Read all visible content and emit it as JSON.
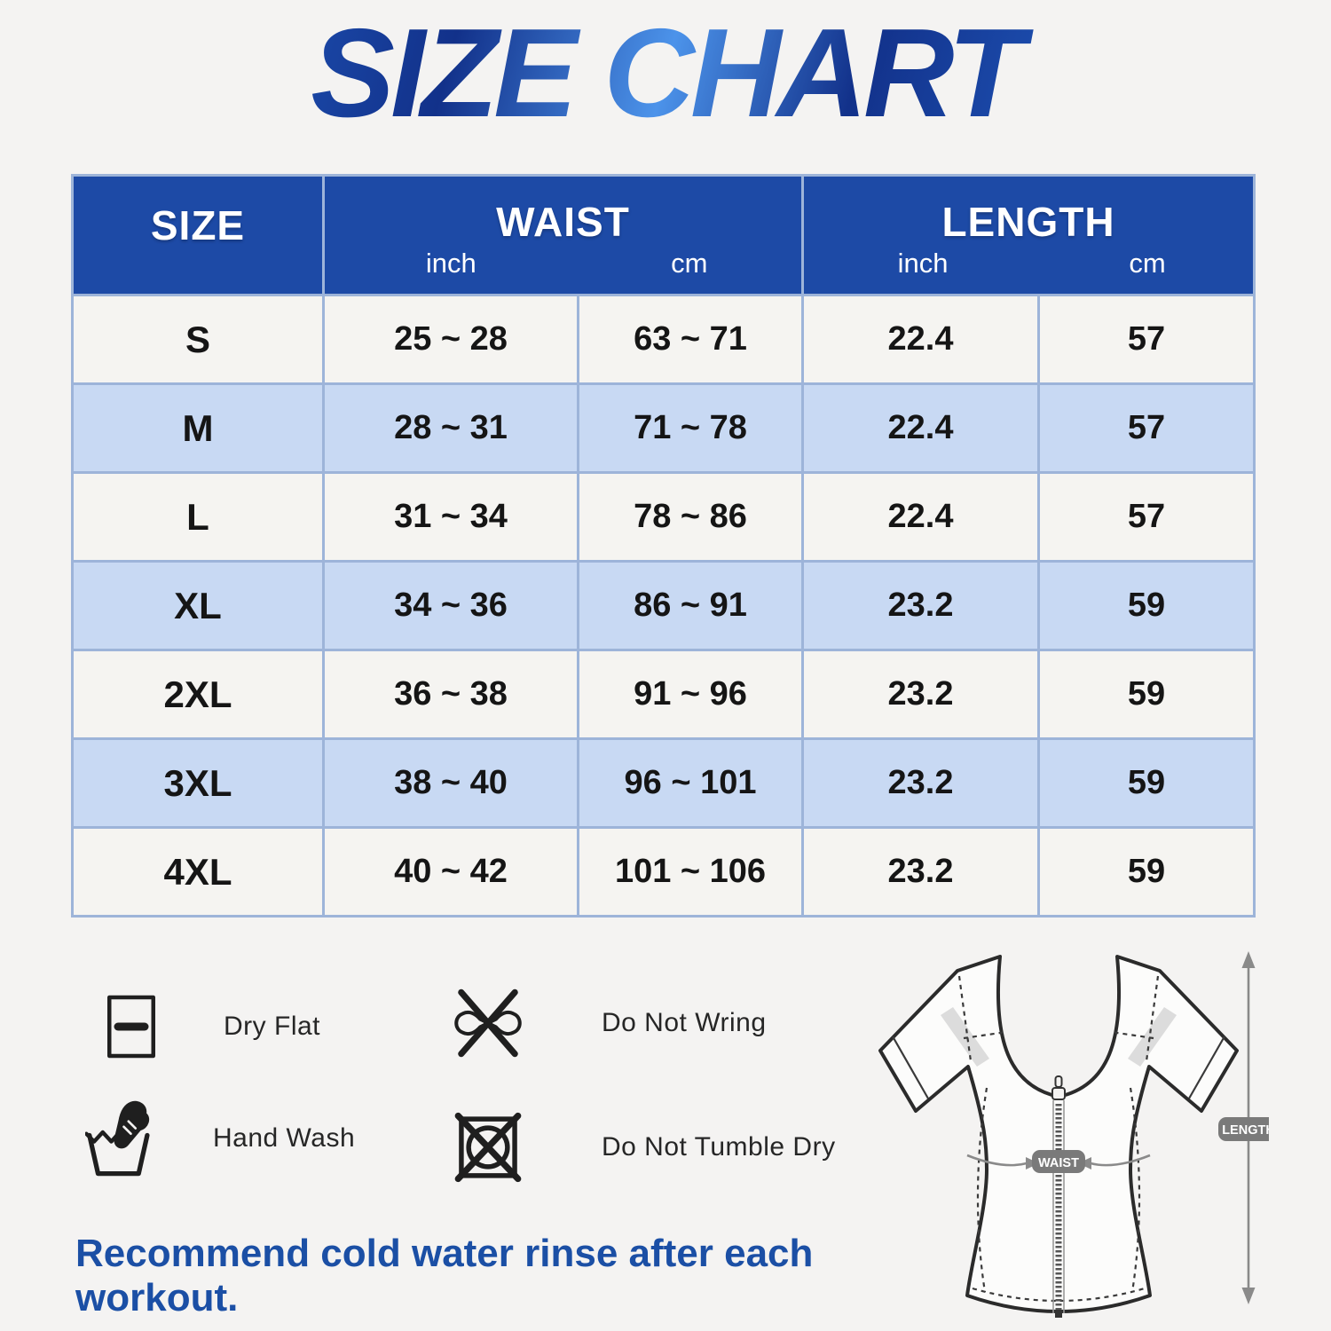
{
  "title": "SIZE CHART",
  "table": {
    "col_size": "SIZE",
    "col_waist": "WAIST",
    "col_length": "LENGTH",
    "unit_inch": "inch",
    "unit_cm": "cm",
    "rows": [
      {
        "size": "S",
        "waist_in": "25 ~ 28",
        "waist_cm": "63 ~ 71",
        "len_in": "22.4",
        "len_cm": "57"
      },
      {
        "size": "M",
        "waist_in": "28 ~ 31",
        "waist_cm": "71 ~ 78",
        "len_in": "22.4",
        "len_cm": "57"
      },
      {
        "size": "L",
        "waist_in": "31 ~ 34",
        "waist_cm": "78 ~ 86",
        "len_in": "22.4",
        "len_cm": "57"
      },
      {
        "size": "XL",
        "waist_in": "34 ~ 36",
        "waist_cm": "86 ~ 91",
        "len_in": "23.2",
        "len_cm": "59"
      },
      {
        "size": "2XL",
        "waist_in": "36 ~ 38",
        "waist_cm": "91 ~ 96",
        "len_in": "23.2",
        "len_cm": "59"
      },
      {
        "size": "3XL",
        "waist_in": "38 ~ 40",
        "waist_cm": "96 ~ 101",
        "len_in": "23.2",
        "len_cm": "59"
      },
      {
        "size": "4XL",
        "waist_in": "40 ~ 42",
        "waist_cm": "101 ~ 106",
        "len_in": "23.2",
        "len_cm": "59"
      }
    ]
  },
  "chart_data": {
    "type": "table",
    "title": "SIZE CHART",
    "columns": [
      "SIZE",
      "WAIST inch",
      "WAIST cm",
      "LENGTH inch",
      "LENGTH cm"
    ],
    "rows": [
      [
        "S",
        "25 ~ 28",
        "63 ~ 71",
        "22.4",
        "57"
      ],
      [
        "M",
        "28 ~ 31",
        "71 ~ 78",
        "22.4",
        "57"
      ],
      [
        "L",
        "31 ~ 34",
        "78 ~ 86",
        "22.4",
        "57"
      ],
      [
        "XL",
        "34 ~ 36",
        "86 ~ 91",
        "23.2",
        "59"
      ],
      [
        "2XL",
        "36 ~ 38",
        "91 ~ 96",
        "23.2",
        "59"
      ],
      [
        "3XL",
        "38 ~ 40",
        "96 ~ 101",
        "23.2",
        "59"
      ],
      [
        "4XL",
        "40 ~ 42",
        "101 ~ 106",
        "23.2",
        "59"
      ]
    ]
  },
  "care": [
    {
      "icon": "dry-flat-icon",
      "label": "Dry Flat"
    },
    {
      "icon": "do-not-wring-icon",
      "label": "Do Not Wring"
    },
    {
      "icon": "hand-wash-icon",
      "label": "Hand Wash"
    },
    {
      "icon": "do-not-tumble-dry-icon",
      "label": "Do Not Tumble Dry"
    }
  ],
  "diagram": {
    "waist_label": "WAIST",
    "length_label": "LENGTH"
  },
  "footnote": "Recommend cold water rinse after each workout.",
  "colors": {
    "bg": "#f4f3f2",
    "header_blue": "#1d4aa6",
    "row_blue": "#c8d9f3",
    "row_light": "#f5f4f1",
    "table_border": "#9db4d9",
    "footnote_blue": "#1b4fa5",
    "title_blue_dark": "#12318a",
    "title_blue_mid": "#1f55b8",
    "title_blue_light": "#4c93ea",
    "pill_gray": "#7a7a7a",
    "arrow_gray": "#8a8a8a",
    "ink": "#151515",
    "care_ink": "#262626"
  }
}
